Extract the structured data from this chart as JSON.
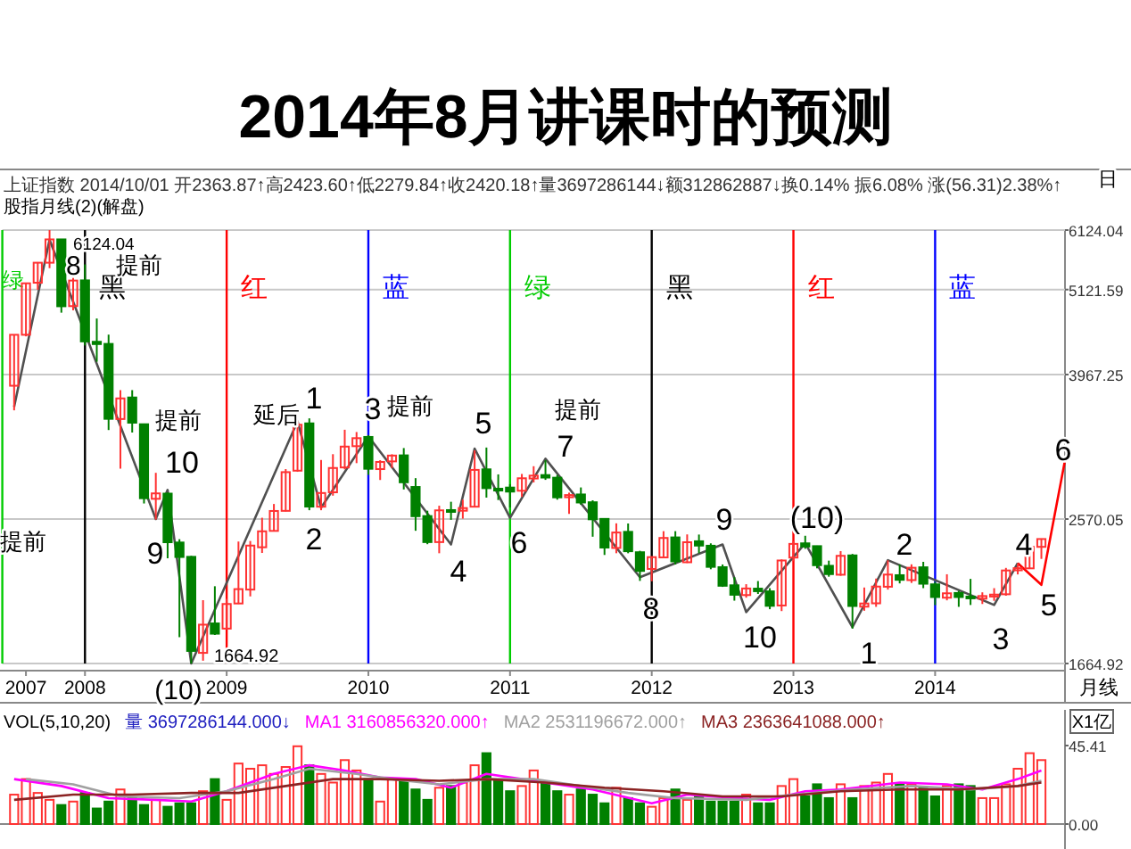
{
  "chart_data": [
    {
      "type": "candlestick",
      "title": "2014年8月讲课时的预测",
      "subtitle": "上证指数 2014/10/01 开2363.87↑高2423.60↑低2279.84↑收2420.18↑量3697286144↓额312862887↓换0.14% 振6.08% 涨(56.31)2.38%↑",
      "x": [
        "2007-07",
        "2007-08",
        "2007-09",
        "2007-10",
        "2007-11",
        "2007-12",
        "2008-01",
        "2008-02",
        "2008-03",
        "2008-04",
        "2008-05",
        "2008-06",
        "2008-07",
        "2008-08",
        "2008-09",
        "2008-10",
        "2008-11",
        "2008-12",
        "2009-01",
        "2009-02",
        "2009-03",
        "2009-04",
        "2009-05",
        "2009-06",
        "2009-07",
        "2009-08",
        "2009-09",
        "2009-10",
        "2009-11",
        "2009-12",
        "2010-01",
        "2010-02",
        "2010-03",
        "2010-04",
        "2010-05",
        "2010-06",
        "2010-07",
        "2010-08",
        "2010-09",
        "2010-10",
        "2010-11",
        "2010-12",
        "2011-01",
        "2011-02",
        "2011-03",
        "2011-04",
        "2011-05",
        "2011-06",
        "2011-07",
        "2011-08",
        "2011-09",
        "2011-10",
        "2011-11",
        "2011-12",
        "2012-01",
        "2012-02",
        "2012-03",
        "2012-04",
        "2012-05",
        "2012-06",
        "2012-07",
        "2012-08",
        "2012-09",
        "2012-10",
        "2012-11",
        "2012-12",
        "2013-01",
        "2013-02",
        "2013-03",
        "2013-04",
        "2013-05",
        "2013-06",
        "2013-07",
        "2013-08",
        "2013-09",
        "2013-10",
        "2013-11",
        "2013-12",
        "2014-01",
        "2014-02",
        "2014-03",
        "2014-04",
        "2014-05",
        "2014-06",
        "2014-07",
        "2014-08",
        "2014-09",
        "2014-10"
      ],
      "ohlc": [
        [
          3836,
          4472,
          3563,
          4471
        ],
        [
          4471,
          5219,
          4450,
          5219
        ],
        [
          5228,
          5562,
          5119,
          5552
        ],
        [
          5552,
          6124.04,
          5462,
          5955
        ],
        [
          5955,
          5955,
          4778,
          4871
        ],
        [
          4873,
          5303,
          4812,
          5262
        ],
        [
          5265,
          5523,
          4330,
          4383
        ],
        [
          4378,
          4695,
          4123,
          4348
        ],
        [
          4350,
          4473,
          3358,
          3473
        ],
        [
          3471,
          3786,
          2990,
          3693
        ],
        [
          3703,
          3786,
          3333,
          3433
        ],
        [
          3417,
          3424,
          2693,
          2736
        ],
        [
          2731,
          2953,
          2566,
          2776
        ],
        [
          2774,
          2782,
          2284,
          2397
        ],
        [
          2395,
          2419,
          1802,
          2293
        ],
        [
          2294,
          2301,
          1664.92,
          1729
        ],
        [
          1719,
          2014,
          1679,
          1871
        ],
        [
          1878,
          2100,
          1814,
          1821
        ],
        [
          1849,
          2022,
          1844,
          1991
        ],
        [
          1994,
          2402,
          1991,
          2082
        ],
        [
          2079,
          2406,
          2037,
          2373
        ],
        [
          2361,
          2580,
          2321,
          2477
        ],
        [
          2480,
          2689,
          2478,
          2633
        ],
        [
          2634,
          2986,
          2630,
          2959
        ],
        [
          2972,
          3454,
          2962,
          3412
        ],
        [
          3426,
          3478,
          2639,
          2668
        ],
        [
          2667,
          3069,
          2639,
          2779
        ],
        [
          2785,
          3123,
          2757,
          2996
        ],
        [
          3001,
          3361,
          2984,
          3195
        ],
        [
          3199,
          3338,
          3040,
          3277
        ],
        [
          3289,
          3306,
          2935,
          2989
        ],
        [
          2986,
          3067,
          2890,
          3051
        ],
        [
          3056,
          3122,
          2996,
          3110
        ],
        [
          3112,
          3181,
          2809,
          2870
        ],
        [
          2830,
          2906,
          2481,
          2592
        ],
        [
          2593,
          2635,
          2383,
          2398
        ],
        [
          2398,
          2675,
          2319,
          2638
        ],
        [
          2640,
          2707,
          2564,
          2639
        ],
        [
          2635,
          2724,
          2573,
          2656
        ],
        [
          2667,
          3159,
          2661,
          2979
        ],
        [
          2984,
          3186,
          2741,
          2820
        ],
        [
          2815,
          2939,
          2721,
          2808
        ],
        [
          2825,
          2854,
          2661,
          2791
        ],
        [
          2798,
          2943,
          2747,
          2905
        ],
        [
          2903,
          3012,
          2869,
          2928
        ],
        [
          2933,
          3067,
          2891,
          2911
        ],
        [
          2910,
          2934,
          2724,
          2743
        ],
        [
          2744,
          2782,
          2610,
          2762
        ],
        [
          2767,
          2826,
          2683,
          2701
        ],
        [
          2703,
          2719,
          2437,
          2568
        ],
        [
          2571,
          2574,
          2307,
          2359
        ],
        [
          2356,
          2537,
          2319,
          2468
        ],
        [
          2473,
          2536,
          2319,
          2333
        ],
        [
          2326,
          2336,
          2134,
          2199
        ],
        [
          2212,
          2298,
          2132,
          2292
        ],
        [
          2290,
          2478,
          2286,
          2428
        ],
        [
          2432,
          2478,
          2242,
          2263
        ],
        [
          2257,
          2454,
          2252,
          2397
        ],
        [
          2404,
          2453,
          2319,
          2373
        ],
        [
          2372,
          2389,
          2210,
          2226
        ],
        [
          2224,
          2242,
          2096,
          2103
        ],
        [
          2106,
          2158,
          2011,
          2047
        ],
        [
          2045,
          2113,
          2029,
          2086
        ],
        [
          2085,
          2133,
          2052,
          2069
        ],
        [
          2068,
          2088,
          1960,
          1980
        ],
        [
          1982,
          2276,
          1949,
          2269
        ],
        [
          2289,
          2406,
          2264,
          2385
        ],
        [
          2389,
          2444,
          2350,
          2366
        ],
        [
          2369,
          2372,
          2216,
          2237
        ],
        [
          2233,
          2268,
          2161,
          2178
        ],
        [
          2174,
          2334,
          2167,
          2301
        ],
        [
          2304,
          2314,
          1849,
          1979
        ],
        [
          1975,
          2092,
          1951,
          1994
        ],
        [
          1995,
          2149,
          1974,
          2098
        ],
        [
          2097,
          2270,
          2079,
          2175
        ],
        [
          2171,
          2242,
          2118,
          2141
        ],
        [
          2139,
          2243,
          2121,
          2220
        ],
        [
          2223,
          2260,
          2088,
          2116
        ],
        [
          2112,
          2128,
          1984,
          2033
        ],
        [
          2029,
          2177,
          2013,
          2056
        ],
        [
          2058,
          2071,
          1974,
          2033
        ],
        [
          2036,
          2147,
          1985,
          2026
        ],
        [
          2023,
          2062,
          1991,
          2039
        ],
        [
          2036,
          2088,
          2010,
          2048
        ],
        [
          2050,
          2219,
          2041,
          2202
        ],
        [
          2203,
          2248,
          2176,
          2217
        ],
        [
          2216,
          2367,
          2214,
          2364
        ],
        [
          2363.87,
          2423.6,
          2279.84,
          2420.18
        ]
      ],
      "colors": [
        "#ff3232",
        "#ff3232",
        "#ff3232",
        "#ff3232",
        "#008000",
        "#ff3232",
        "#008000",
        "#008000",
        "#008000",
        "#ff3232",
        "#008000",
        "#008000",
        "#ff3232",
        "#008000",
        "#008000",
        "#008000",
        "#ff3232",
        "#008000",
        "#ff3232",
        "#ff3232",
        "#ff3232",
        "#ff3232",
        "#ff3232",
        "#ff3232",
        "#ff3232",
        "#008000",
        "#ff3232",
        "#ff3232",
        "#ff3232",
        "#ff3232",
        "#008000",
        "#ff3232",
        "#ff3232",
        "#008000",
        "#008000",
        "#008000",
        "#ff3232",
        "#008000",
        "#ff3232",
        "#ff3232",
        "#008000",
        "#008000",
        "#008000",
        "#ff3232",
        "#ff3232",
        "#008000",
        "#008000",
        "#ff3232",
        "#008000",
        "#008000",
        "#008000",
        "#ff3232",
        "#008000",
        "#008000",
        "#ff3232",
        "#ff3232",
        "#008000",
        "#ff3232",
        "#008000",
        "#008000",
        "#008000",
        "#008000",
        "#ff3232",
        "#008000",
        "#008000",
        "#ff3232",
        "#ff3232",
        "#008000",
        "#008000",
        "#008000",
        "#ff3232",
        "#008000",
        "#ff3232",
        "#ff3232",
        "#ff3232",
        "#008000",
        "#ff3232",
        "#008000",
        "#008000",
        "#ff3232",
        "#008000",
        "#008000",
        "#ff3232",
        "#ff3232",
        "#ff3232",
        "#ff3232",
        "#ff3232",
        "#ff3232"
      ],
      "series": [
        {
          "type": "line",
          "color": "#505050",
          "x": [
            "2007-07",
            "2007-10",
            "2008-07",
            "2008-08",
            "2008-10",
            "2009-07",
            "2009-09",
            "2010-01",
            "2010-08",
            "2010-10",
            "2011-01",
            "2011-04",
            "2011-12",
            "2012-07",
            "2012-09",
            "2013-02",
            "2013-06",
            "2013-09",
            "2014-06",
            "2014-08"
          ],
          "values": [
            3600,
            5950,
            2570,
            2805,
            1665,
            3447,
            2659,
            3296,
            2381,
            3176,
            2579,
            3081,
            2158,
            2381,
            1943,
            2390,
            1857,
            2271,
            1985,
            2251
          ]
        },
        {
          "type": "line",
          "color": "#ff0000",
          "x": [
            "2014-08",
            "2014-10",
            "2014-12"
          ],
          "values": [
            2251,
            2109,
            3065
          ]
        }
      ],
      "xlim": [
        "2007-06",
        "2014-12"
      ],
      "ylim": [
        1664.92,
        6124.04
      ],
      "log": true,
      "grid": "y",
      "yticks": [
        1664.92,
        2570.05,
        3967.25,
        5121.59,
        6124.04
      ],
      "xticks": [
        {
          "value": "2007-08",
          "label": "2007"
        },
        {
          "value": "2008-01",
          "label": "2008"
        },
        {
          "value": "2009-01",
          "label": "2009"
        },
        {
          "value": "2010-01",
          "label": "2010"
        },
        {
          "value": "2011-01",
          "label": "2011"
        },
        {
          "value": "2012-01",
          "label": "2012"
        },
        {
          "value": "2013-01",
          "label": "2013"
        },
        {
          "value": "2014-01",
          "label": "2014"
        }
      ],
      "ref_lines": [
        {
          "axis": "x",
          "value": "2007-06",
          "label": "绿",
          "color": "#00cc00"
        },
        {
          "axis": "x",
          "value": "2008-01",
          "label": "黑",
          "color": "#000000"
        },
        {
          "axis": "x",
          "value": "2009-01",
          "label": "红",
          "color": "#ff0000"
        },
        {
          "axis": "x",
          "value": "2010-01",
          "label": "蓝",
          "color": "#0000ff"
        },
        {
          "axis": "x",
          "value": "2011-01",
          "label": "绿",
          "color": "#00cc00"
        },
        {
          "axis": "x",
          "value": "2012-01",
          "label": "黑",
          "color": "#000000"
        },
        {
          "axis": "x",
          "value": "2013-01",
          "label": "红",
          "color": "#ff0000"
        },
        {
          "axis": "x",
          "value": "2014-01",
          "label": "蓝",
          "color": "#0000ff"
        }
      ],
      "annotations": [
        "股指月线(2)(解盘)",
        "日",
        "月线",
        "6124.04",
        "1664.92",
        "(10)",
        "8",
        "提前",
        "提前",
        "提前",
        "10",
        "9",
        "延后",
        "1",
        "2",
        "3",
        "提前",
        "4",
        "5",
        "6",
        "提前",
        "7",
        "8",
        "9",
        "10",
        "(10)",
        "1",
        "2",
        "3",
        "4",
        "5",
        "6"
      ]
    },
    {
      "type": "bar",
      "title": "VOL(5,10,20)",
      "ylabel": "X1亿",
      "annotations": [
        "量 3697286144.000↓"
      ],
      "x": [
        "2007-07",
        "2007-08",
        "2007-09",
        "2007-10",
        "2007-11",
        "2007-12",
        "2008-01",
        "2008-02",
        "2008-03",
        "2008-04",
        "2008-05",
        "2008-06",
        "2008-07",
        "2008-08",
        "2008-09",
        "2008-10",
        "2008-11",
        "2008-12",
        "2009-01",
        "2009-02",
        "2009-03",
        "2009-04",
        "2009-05",
        "2009-06",
        "2009-07",
        "2009-08",
        "2009-09",
        "2009-10",
        "2009-11",
        "2009-12",
        "2010-01",
        "2010-02",
        "2010-03",
        "2010-04",
        "2010-05",
        "2010-06",
        "2010-07",
        "2010-08",
        "2010-09",
        "2010-10",
        "2010-11",
        "2010-12",
        "2011-01",
        "2011-02",
        "2011-03",
        "2011-04",
        "2011-05",
        "2011-06",
        "2011-07",
        "2011-08",
        "2011-09",
        "2011-10",
        "2011-11",
        "2011-12",
        "2012-01",
        "2012-02",
        "2012-03",
        "2012-04",
        "2012-05",
        "2012-06",
        "2012-07",
        "2012-08",
        "2012-09",
        "2012-10",
        "2012-11",
        "2012-12",
        "2013-01",
        "2013-02",
        "2013-03",
        "2013-04",
        "2013-05",
        "2013-06",
        "2013-07",
        "2013-08",
        "2013-09",
        "2013-10",
        "2013-11",
        "2013-12",
        "2014-01",
        "2014-02",
        "2014-03",
        "2014-04",
        "2014-05",
        "2014-06",
        "2014-07",
        "2014-08",
        "2014-09",
        "2014-10"
      ],
      "series": [
        {
          "type": "bar",
          "colors": [
            "#ff3232",
            "#ff3232",
            "#ff3232",
            "#ff3232",
            "#008000",
            "#ff3232",
            "#008000",
            "#008000",
            "#008000",
            "#ff3232",
            "#008000",
            "#008000",
            "#ff3232",
            "#008000",
            "#008000",
            "#008000",
            "#ff3232",
            "#008000",
            "#ff3232",
            "#ff3232",
            "#ff3232",
            "#ff3232",
            "#ff3232",
            "#ff3232",
            "#ff3232",
            "#008000",
            "#ff3232",
            "#ff3232",
            "#ff3232",
            "#ff3232",
            "#008000",
            "#ff3232",
            "#ff3232",
            "#008000",
            "#008000",
            "#008000",
            "#ff3232",
            "#008000",
            "#ff3232",
            "#ff3232",
            "#008000",
            "#008000",
            "#008000",
            "#ff3232",
            "#ff3232",
            "#008000",
            "#008000",
            "#ff3232",
            "#008000",
            "#008000",
            "#008000",
            "#ff3232",
            "#008000",
            "#008000",
            "#ff3232",
            "#ff3232",
            "#008000",
            "#ff3232",
            "#008000",
            "#008000",
            "#008000",
            "#008000",
            "#ff3232",
            "#008000",
            "#008000",
            "#ff3232",
            "#ff3232",
            "#008000",
            "#008000",
            "#008000",
            "#ff3232",
            "#008000",
            "#ff3232",
            "#ff3232",
            "#ff3232",
            "#008000",
            "#ff3232",
            "#008000",
            "#008000",
            "#ff3232",
            "#008000",
            "#008000",
            "#ff3232",
            "#ff3232",
            "#ff3232",
            "#ff3232",
            "#ff3232",
            "#ff3232"
          ],
          "values": [
            17,
            26,
            18,
            14,
            11,
            13,
            18,
            9,
            13,
            20,
            15,
            11,
            14,
            10,
            12,
            12,
            19,
            26,
            14,
            35,
            32,
            34,
            29,
            33,
            45,
            34,
            29,
            24,
            37,
            31,
            26,
            13,
            26,
            25,
            20,
            14,
            21,
            22,
            24,
            34,
            41,
            25,
            19,
            22,
            31,
            24,
            19,
            17,
            20,
            17,
            12,
            21,
            15,
            12,
            10,
            15,
            20,
            14,
            17,
            13,
            13,
            13,
            17,
            12,
            12,
            22,
            26,
            16,
            23,
            15,
            23,
            15,
            22,
            24,
            29,
            23,
            23,
            21,
            16,
            22,
            23,
            22,
            15,
            15,
            23,
            32,
            41,
            37
          ]
        },
        {
          "type": "line",
          "name": "MA1 3160856320.000↑",
          "color": "#ff00ff",
          "x": [
            "2007-07",
            "2007-11",
            "2008-03",
            "2008-07",
            "2008-10",
            "2009-01",
            "2009-05",
            "2009-08",
            "2009-11",
            "2010-02",
            "2010-05",
            "2010-08",
            "2010-11",
            "2011-02",
            "2011-05",
            "2011-08",
            "2012-01",
            "2012-04",
            "2012-08",
            "2012-11",
            "2013-02",
            "2013-05",
            "2013-10",
            "2014-02",
            "2014-05",
            "2014-08",
            "2014-10"
          ],
          "values": [
            26,
            22,
            15,
            14,
            13,
            19,
            29,
            34,
            31,
            27,
            26,
            21,
            29,
            26,
            23,
            20,
            12,
            17,
            15,
            14,
            19,
            20,
            24,
            23,
            20,
            26,
            31
          ]
        },
        {
          "type": "line",
          "name": "MA2 2531196672.000↑",
          "color": "#a0a0a0",
          "x": [
            "2007-08",
            "2007-12",
            "2008-04",
            "2008-09",
            "2009-01",
            "2009-05",
            "2009-08",
            "2009-12",
            "2010-03",
            "2010-07",
            "2010-11",
            "2011-03",
            "2011-07",
            "2011-11",
            "2012-03",
            "2012-09",
            "2013-01",
            "2013-06",
            "2013-11",
            "2014-04",
            "2014-08",
            "2014-10"
          ],
          "values": [
            26,
            23,
            16,
            15,
            19,
            26,
            32,
            29,
            26,
            23,
            26,
            26,
            22,
            18,
            15,
            14,
            17,
            20,
            22,
            20,
            22,
            25
          ]
        },
        {
          "type": "line",
          "name": "MA3 2363641088.000↑",
          "color": "#8b2323",
          "x": [
            "2007-07",
            "2007-12",
            "2008-05",
            "2008-10",
            "2009-02",
            "2009-06",
            "2009-10",
            "2010-02",
            "2010-07",
            "2010-11",
            "2011-04",
            "2011-09",
            "2012-02",
            "2012-07",
            "2012-12",
            "2013-05",
            "2013-10",
            "2014-03",
            "2014-08",
            "2014-10"
          ],
          "values": [
            14,
            17,
            17,
            18,
            18,
            22,
            26,
            26,
            25,
            26,
            24,
            21,
            19,
            16,
            16,
            19,
            20,
            20,
            22,
            24
          ]
        }
      ],
      "xlim": [
        "2007-06",
        "2014-12"
      ],
      "ylim": [
        0,
        45.41
      ],
      "yticks": [
        {
          "value": 0,
          "label": "0.00"
        },
        45.41
      ],
      "tick_labels": "y"
    }
  ]
}
